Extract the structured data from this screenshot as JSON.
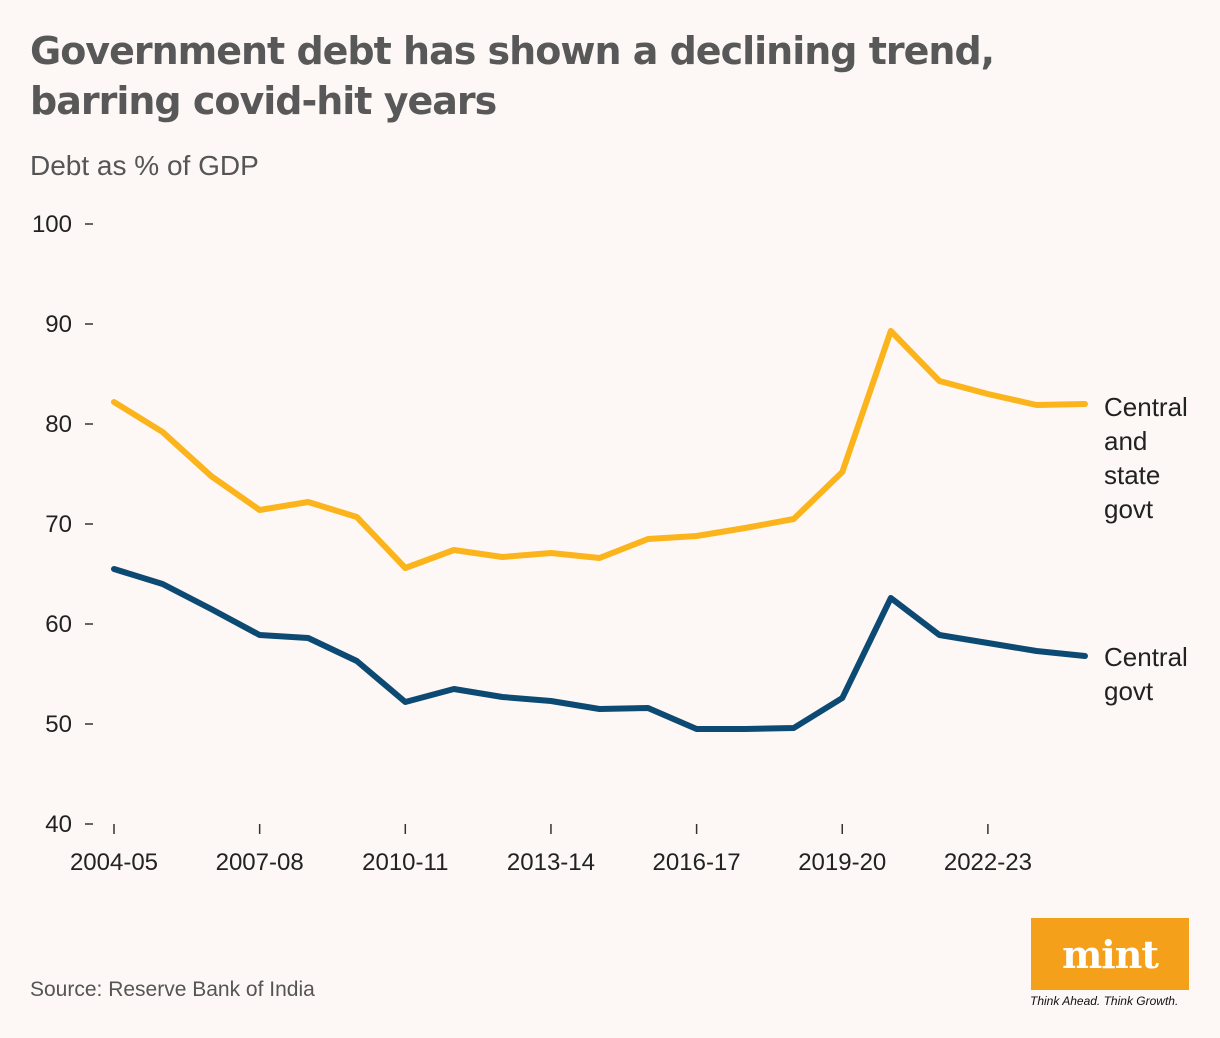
{
  "header": {
    "title": "Government debt has shown a declining trend, barring covid-hit years",
    "subtitle": "Debt as % of GDP"
  },
  "footer": {
    "source": "Source: Reserve Bank of India",
    "logo_text": "mint",
    "tagline": "Think Ahead. Think Growth."
  },
  "colors": {
    "central_and_state": "#fbb41b",
    "central": "#0d4a73",
    "background": "#fdf8f6",
    "brand": "#f5a01a"
  },
  "chart_data": {
    "type": "line",
    "title": "Government debt has shown a declining trend, barring covid-hit years",
    "ylabel": "Debt as % of GDP",
    "ylim": [
      40,
      100
    ],
    "yticks": [
      40,
      50,
      60,
      70,
      80,
      90,
      100
    ],
    "grid": false,
    "x": [
      "2004-05",
      "2005-06",
      "2006-07",
      "2007-08",
      "2008-09",
      "2009-10",
      "2010-11",
      "2011-12",
      "2012-13",
      "2013-14",
      "2014-15",
      "2015-16",
      "2016-17",
      "2017-18",
      "2018-19",
      "2019-20",
      "2020-21",
      "2021-22",
      "2022-23",
      "2023-24",
      "2024-25"
    ],
    "xtick_labels": [
      "2004-05",
      "2007-08",
      "2010-11",
      "2013-14",
      "2016-17",
      "2019-20",
      "2022-23"
    ],
    "series": [
      {
        "name": "Central and state govt",
        "label_lines": [
          "Central",
          "and",
          "state",
          "govt"
        ],
        "values": [
          82.2,
          79.2,
          74.8,
          71.4,
          72.2,
          70.7,
          65.6,
          67.4,
          66.7,
          67.1,
          66.6,
          68.5,
          68.8,
          69.6,
          70.5,
          75.2,
          89.3,
          84.3,
          83.0,
          81.9,
          82.0
        ]
      },
      {
        "name": "Central govt",
        "label_lines": [
          "Central",
          "govt"
        ],
        "values": [
          65.5,
          64.0,
          61.5,
          58.9,
          58.6,
          56.3,
          52.2,
          53.5,
          52.7,
          52.3,
          51.5,
          51.6,
          49.5,
          49.5,
          49.6,
          52.6,
          62.6,
          58.9,
          58.1,
          57.3,
          56.8
        ]
      }
    ]
  }
}
